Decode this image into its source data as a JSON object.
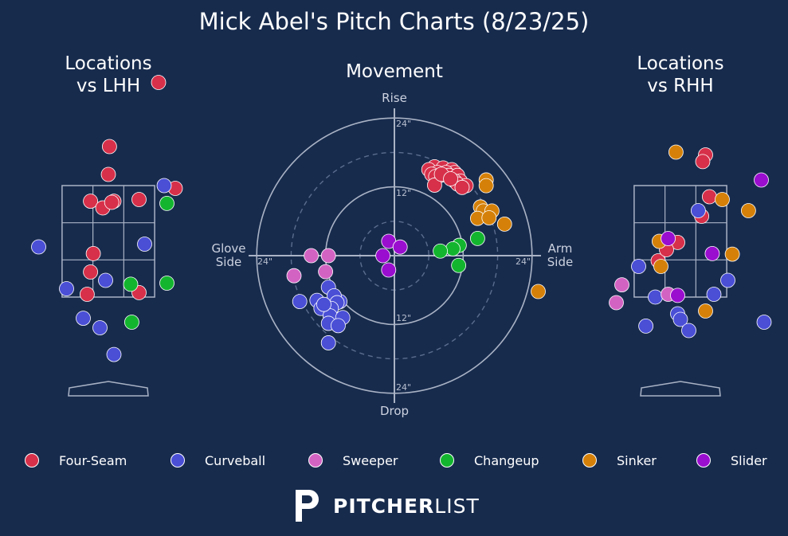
{
  "title": "Mick Abel's Pitch Charts (8/23/25)",
  "panels": {
    "lhh_title_line1": "Locations",
    "lhh_title_line2": "vs LHH",
    "movement_title": "Movement",
    "rhh_title_line1": "Locations",
    "rhh_title_line2": "vs RHH"
  },
  "movement_axes": {
    "top": "Rise",
    "bottom": "Drop",
    "left_line1": "Glove",
    "left_line2": "Side",
    "right_line1": "Arm",
    "right_line2": "Side",
    "ring_top_24": "24\"",
    "ring_top_12": "12\"",
    "ring_bottom_12": "12\"",
    "ring_bottom_24": "24\"",
    "ring_left_24": "24\"",
    "ring_right_24": "24\""
  },
  "brand": {
    "bold": "PITCHER",
    "light": "LIST"
  },
  "chart_data": {
    "type": "scatter",
    "pitch_types": [
      {
        "name": "Four-Seam",
        "color": "#d7304a"
      },
      {
        "name": "Curveball",
        "color": "#4a4fd6"
      },
      {
        "name": "Sweeper",
        "color": "#d363c3"
      },
      {
        "name": "Changeup",
        "color": "#13b52f"
      },
      {
        "name": "Sinker",
        "color": "#d58109"
      },
      {
        "name": "Slider",
        "color": "#9a0ecf"
      }
    ],
    "movement": {
      "units": "inches",
      "rings": [
        6,
        12,
        18,
        24
      ],
      "points": {
        "Four-Seam": [
          [
            7,
            15.5
          ],
          [
            8.5,
            15.3
          ],
          [
            10,
            15
          ],
          [
            10.5,
            14.5
          ],
          [
            6,
            15
          ],
          [
            7.5,
            14.5
          ],
          [
            9,
            14.5
          ],
          [
            8,
            14
          ],
          [
            9.5,
            14
          ],
          [
            11,
            14
          ],
          [
            6.5,
            14.2
          ],
          [
            7.2,
            13.8
          ],
          [
            11.5,
            13
          ],
          [
            10.5,
            13
          ],
          [
            11,
            12.5
          ],
          [
            12.5,
            12.2
          ],
          [
            7,
            12.3
          ],
          [
            11.8,
            11.9
          ],
          [
            8.2,
            14.2
          ],
          [
            9.8,
            13.4
          ]
        ],
        "Sinker": [
          [
            16,
            13.2
          ],
          [
            16,
            12.2
          ],
          [
            15,
            8.5
          ],
          [
            15.5,
            7.8
          ],
          [
            17,
            7.8
          ],
          [
            14.5,
            6.5
          ],
          [
            16.5,
            6.6
          ],
          [
            19.2,
            5.5
          ]
        ],
        "Changeup": [
          [
            14.5,
            3
          ],
          [
            11.3,
            1.8
          ],
          [
            10.2,
            1.2
          ],
          [
            8,
            0.8
          ],
          [
            11.2,
            -1.7
          ]
        ],
        "Slider": [
          [
            -1,
            2.5
          ],
          [
            1,
            1.5
          ],
          [
            -2,
            0
          ],
          [
            -1,
            -2.5
          ]
        ],
        "Sweeper": [
          [
            -14.5,
            0
          ],
          [
            -11.5,
            0
          ],
          [
            -12,
            -2.8
          ],
          [
            -17.5,
            -3.5
          ]
        ],
        "Curveball": [
          [
            -11.5,
            -5.5
          ],
          [
            -16.5,
            -8
          ],
          [
            -13.5,
            -7.8
          ],
          [
            -9.5,
            -8
          ],
          [
            -10.5,
            -7
          ],
          [
            -10,
            -8.2
          ],
          [
            -12.8,
            -9.2
          ],
          [
            -11,
            -9.2
          ],
          [
            -11.2,
            -10.5
          ],
          [
            -9,
            -10.8
          ],
          [
            -11.5,
            -11.8
          ],
          [
            -9.8,
            -12.2
          ],
          [
            -11.5,
            -15.2
          ],
          [
            -12.3,
            -8.5
          ]
        ]
      }
    },
    "locations_vs_lhh": {
      "units": "feet",
      "xlim": [
        -2.2,
        2.2
      ],
      "ylim": [
        -0.6,
        5.6
      ],
      "strike_zone": {
        "x": [
          -0.83,
          0.83
        ],
        "z": [
          1.5,
          3.5
        ]
      },
      "points": {
        "Four-Seam": [
          [
            0.9,
            5.35
          ],
          [
            0.02,
            4.2
          ],
          [
            0,
            3.7
          ],
          [
            -0.32,
            3.22
          ],
          [
            0.1,
            3.22
          ],
          [
            0.55,
            3.25
          ],
          [
            -0.1,
            3.1
          ],
          [
            0.06,
            3.2
          ],
          [
            1.2,
            3.45
          ],
          [
            -0.27,
            2.28
          ],
          [
            -0.32,
            1.95
          ],
          [
            -2.1,
            1.62
          ],
          [
            -0.38,
            1.55
          ],
          [
            0.55,
            1.58
          ]
        ],
        "Curveball": [
          [
            -1.25,
            2.4
          ],
          [
            0.65,
            2.45
          ],
          [
            1,
            3.5
          ],
          [
            -0.75,
            1.65
          ],
          [
            -0.05,
            1.8
          ],
          [
            -0.45,
            1.12
          ],
          [
            -0.15,
            0.95
          ],
          [
            0.1,
            0.47
          ]
        ],
        "Changeup": [
          [
            1.05,
            3.18
          ],
          [
            0.4,
            1.73
          ],
          [
            1.05,
            1.75
          ],
          [
            0.42,
            1.05
          ]
        ]
      }
    },
    "locations_vs_rhh": {
      "units": "feet",
      "xlim": [
        -2.2,
        2.2
      ],
      "ylim": [
        -0.6,
        5.6
      ],
      "strike_zone": {
        "x": [
          -0.83,
          0.83
        ],
        "z": [
          1.5,
          3.5
        ]
      },
      "points": {
        "Four-Seam": [
          [
            0.45,
            4.05
          ],
          [
            0.4,
            3.93
          ],
          [
            0.52,
            3.3
          ],
          [
            0.38,
            2.95
          ],
          [
            -0.05,
            2.48
          ],
          [
            -0.4,
            2.15
          ],
          [
            -0.25,
            2.35
          ]
        ],
        "Sinker": [
          [
            -0.08,
            4.1
          ],
          [
            0.75,
            3.25
          ],
          [
            1.22,
            3.05
          ],
          [
            -0.38,
            2.5
          ],
          [
            0.93,
            2.27
          ],
          [
            -0.35,
            2.05
          ],
          [
            0.45,
            1.25
          ],
          [
            -2.55,
            1.6
          ]
        ],
        "Curveball": [
          [
            0.32,
            3.05
          ],
          [
            -0.75,
            2.05
          ],
          [
            0.85,
            1.8
          ],
          [
            -0.45,
            1.5
          ],
          [
            0.6,
            1.55
          ],
          [
            -0.05,
            1.2
          ],
          [
            0,
            1.1
          ],
          [
            -0.62,
            0.98
          ],
          [
            0.15,
            0.9
          ],
          [
            1.5,
            1.05
          ]
        ],
        "Sweeper": [
          [
            -1.05,
            1.72
          ],
          [
            -1.15,
            1.4
          ],
          [
            -0.22,
            1.55
          ]
        ],
        "Slider": [
          [
            1.45,
            3.6
          ],
          [
            -0.22,
            2.55
          ],
          [
            0.57,
            2.28
          ],
          [
            -0.05,
            1.53
          ]
        ]
      }
    }
  }
}
